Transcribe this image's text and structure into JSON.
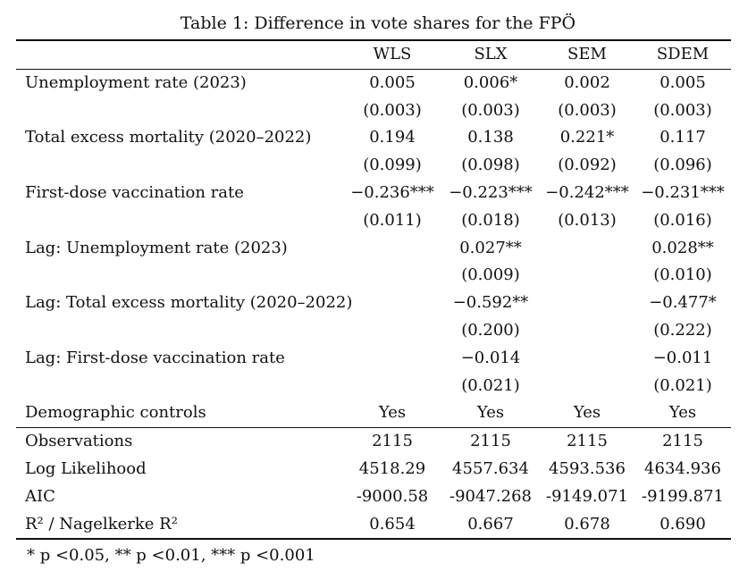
{
  "caption": "Table 1: Difference in vote shares for the FPÖ",
  "columns": [
    "",
    "WLS",
    "SLX",
    "SEM",
    "SDEM"
  ],
  "rows": [
    {
      "label": "Unemployment rate (2023)",
      "cells": [
        "0.005",
        "0.006*",
        "0.002",
        "0.005"
      ]
    },
    {
      "label": "",
      "cells": [
        "(0.003)",
        "(0.003)",
        "(0.003)",
        "(0.003)"
      ]
    },
    {
      "label": "Total excess mortality (2020–2022)",
      "cells": [
        "0.194",
        "0.138",
        "0.221*",
        "0.117"
      ]
    },
    {
      "label": "",
      "cells": [
        "(0.099)",
        "(0.098)",
        "(0.092)",
        "(0.096)"
      ]
    },
    {
      "label": "First-dose vaccination rate",
      "cells": [
        "−0.236***",
        "−0.223***",
        "−0.242***",
        "−0.231***"
      ]
    },
    {
      "label": "",
      "cells": [
        "(0.011)",
        "(0.018)",
        "(0.013)",
        "(0.016)"
      ]
    },
    {
      "label": "Lag: Unemployment rate (2023)",
      "cells": [
        "",
        "0.027**",
        "",
        "0.028**"
      ]
    },
    {
      "label": "",
      "cells": [
        "",
        "(0.009)",
        "",
        "(0.010)"
      ]
    },
    {
      "label": "Lag: Total excess mortality (2020–2022)",
      "cells": [
        "",
        "−0.592**",
        "",
        "−0.477*"
      ]
    },
    {
      "label": "",
      "cells": [
        "",
        "(0.200)",
        "",
        "(0.222)"
      ]
    },
    {
      "label": "Lag: First-dose vaccination rate",
      "cells": [
        "",
        "−0.014",
        "",
        "−0.011"
      ]
    },
    {
      "label": "",
      "cells": [
        "",
        "(0.021)",
        "",
        "(0.021)"
      ]
    },
    {
      "label": "Demographic controls",
      "cells": [
        "Yes",
        "Yes",
        "Yes",
        "Yes"
      ]
    }
  ],
  "stats": [
    {
      "label": "Observations",
      "cells": [
        "2115",
        "2115",
        "2115",
        "2115"
      ]
    },
    {
      "label": "Log Likelihood",
      "cells": [
        "4518.29",
        "4557.634",
        "4593.536",
        "4634.936"
      ]
    },
    {
      "label": "AIC",
      "cells": [
        "-9000.58",
        "-9047.268",
        "-9149.071",
        "-9199.871"
      ]
    },
    {
      "label": "R² / Nagelkerke R²",
      "cells": [
        "0.654",
        "0.667",
        "0.678",
        "0.690"
      ]
    }
  ],
  "notes": "* p <0.05, ** p <0.01, *** p <0.001"
}
